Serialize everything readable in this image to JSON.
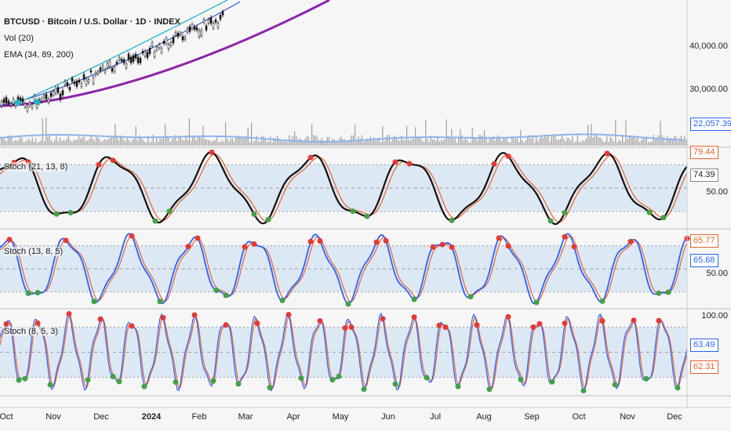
{
  "header": {
    "symbol": "BTCUSD · Bitcoin / U.S. Dollar · 1D · INDEX",
    "volume_label": "Vol (20)",
    "ema_label": "EMA (34, 89, 200)"
  },
  "price_axis": {
    "ticks": [
      "40,000.00",
      "30,000.00"
    ]
  },
  "volume_badge": "22,057.39",
  "panes": [
    {
      "title": "Stoch (21, 13, 8)",
      "ticks": [
        "50.00"
      ],
      "badges": [
        {
          "text": "79.44",
          "color": "#e8632a"
        },
        {
          "text": "74.39",
          "color": "#222222"
        }
      ]
    },
    {
      "title": "Stoch (13, 8, 5)",
      "ticks": [
        "50.00"
      ],
      "badges": [
        {
          "text": "65.77",
          "color": "#e8632a"
        },
        {
          "text": "65.68",
          "color": "#2962ff"
        }
      ]
    },
    {
      "title": "Stoch (8, 5, 3)",
      "ticks": [
        "100.00"
      ],
      "badges": [
        {
          "text": "63.49",
          "color": "#2962ff"
        },
        {
          "text": "62.31",
          "color": "#e8632a"
        }
      ]
    }
  ],
  "x_axis": [
    "Oct",
    "Nov",
    "Dec",
    "2024",
    "Feb",
    "Mar",
    "Apr",
    "May",
    "Jun",
    "Jul",
    "Aug",
    "Sep",
    "Oct",
    "Nov",
    "Dec"
  ],
  "colors": {
    "background": "#f6f6f6",
    "band_fill": "#dde8f5",
    "ema_34": "#22b5c9",
    "ema_89": "#3f63d9",
    "ema_200": "#8e24aa",
    "volume": "#9e9e9e",
    "volume_ma": "#8fb4e8",
    "stoch_k_black": "#111111",
    "stoch_k_blue": "#2962ff",
    "stoch_d": "#e8632a",
    "overbought_dot": "#e53935",
    "oversold_dot": "#43a047"
  }
}
